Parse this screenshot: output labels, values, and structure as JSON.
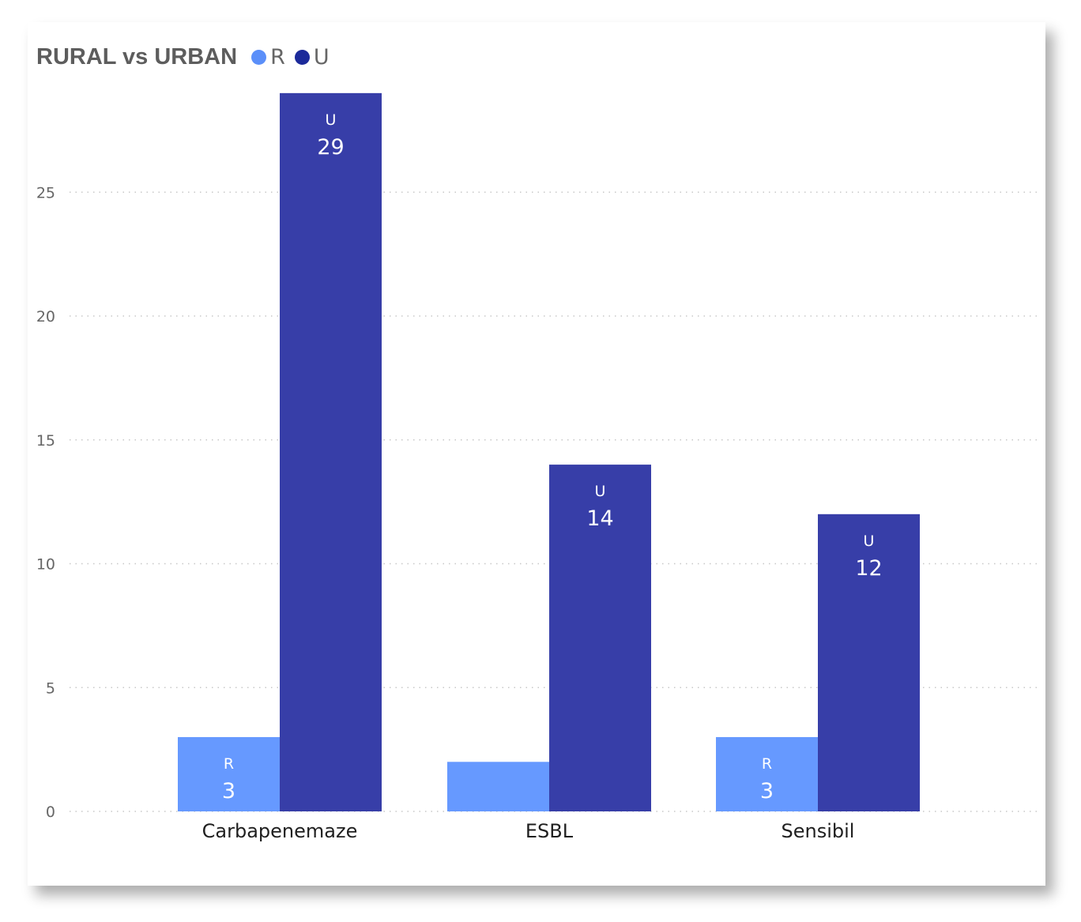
{
  "chart_data": {
    "type": "bar",
    "title": "RURAL vs URBAN",
    "categories": [
      "Carbapenemaze",
      "ESBL",
      "Sensibil"
    ],
    "series": [
      {
        "name": "R",
        "color": "#6699ff",
        "values": [
          3,
          2,
          3
        ],
        "data_labels": [
          [
            "R",
            "3"
          ],
          null,
          [
            "R",
            "3"
          ]
        ]
      },
      {
        "name": "U",
        "color": "#373ea8",
        "values": [
          29,
          14,
          12
        ],
        "data_labels": [
          [
            "U",
            "29"
          ],
          [
            "U",
            "14"
          ],
          [
            "U",
            "12"
          ]
        ]
      }
    ],
    "y_ticks": [
      "0",
      "5",
      "10",
      "15",
      "20",
      "25"
    ],
    "ylim": [
      0,
      29
    ],
    "grid": "horizontal dotted",
    "legend_position": "top-left",
    "legend_dot_colors": [
      "#5b8ff9",
      "#1c2a9a"
    ]
  }
}
